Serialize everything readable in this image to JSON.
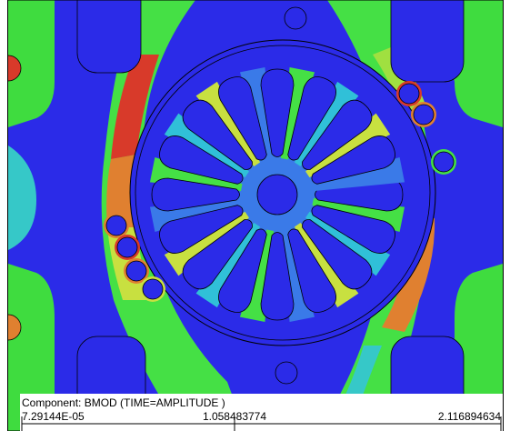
{
  "legend": {
    "title": "Component: BMOD (TIME=AMPLITUDE       )",
    "min": "7.29144E-05",
    "mid": "1.058483774",
    "max": "2.116894634"
  }
}
